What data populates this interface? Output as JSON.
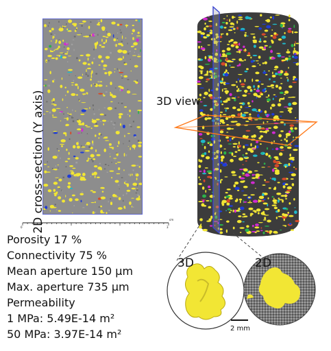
{
  "panels": {
    "section_label": "2D cross-section (Y axis)",
    "view3d_label": "3D view",
    "inset_3d_label": "3D",
    "inset_2d_label": "2D",
    "scale_bar_label": "2 mm",
    "ruler_unit": "cm",
    "ruler_ticks": [
      "0",
      "3"
    ]
  },
  "stats": {
    "porosity": "Porosity 17 %",
    "connectivity": "Connectivity 75 %",
    "mean_aperture": "Mean aperture 150 μm",
    "max_aperture": "Max. aperture 735 μm",
    "permeability_title": "Permeability",
    "perm_1mpa": "1 MPa: 5.49E-14 m²",
    "perm_50mpa": "50 MPa: 3.97E-14 m²"
  },
  "colors": {
    "pore": "#f2e634",
    "matrix": "#8a8a8a",
    "cylinder": "#3a3a3a",
    "section_frame": "#5a63c8",
    "plane_x": "#3b46d0",
    "plane_y": "#ff7a1a"
  }
}
